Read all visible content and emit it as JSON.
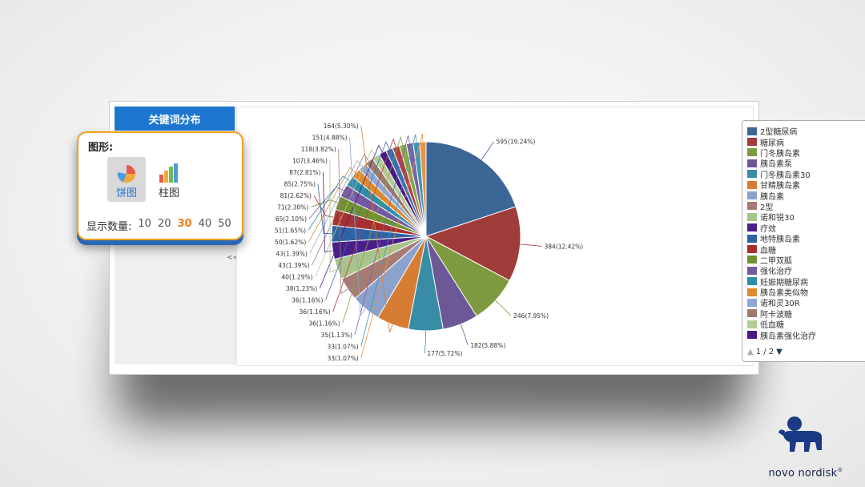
{
  "panel": {
    "title": "关键词分布",
    "collapse_glyph": "<<"
  },
  "options": {
    "shape_label": "图形:",
    "pie_label": "饼图",
    "bar_label": "柱图",
    "count_label": "显示数量:",
    "counts": [
      "10",
      "20",
      "30",
      "40",
      "50"
    ],
    "selected_count": "30"
  },
  "legend_pager": "1 / 2",
  "logo": {
    "text": "novo nordisk",
    "mark": "®"
  },
  "chart_data": {
    "type": "pie",
    "slices": [
      {
        "name": "2型糖尿病",
        "value": 595,
        "label": "595(19.24%)",
        "color": "#3c6696"
      },
      {
        "name": "糖尿病",
        "value": 384,
        "label": "384(12.42%)",
        "color": "#a03c3a"
      },
      {
        "name": "门冬胰岛素",
        "value": 246,
        "label": "246(7.95%)",
        "color": "#7e9a3e"
      },
      {
        "name": "胰岛素泵",
        "value": 182,
        "label": "182(5.88%)",
        "color": "#6c5896"
      },
      {
        "name": "门冬胰岛素30",
        "value": 177,
        "label": "177(5.72%)",
        "color": "#388ca6"
      },
      {
        "name": "甘精胰岛素",
        "value": 164,
        "label": "164(5.30%)",
        "color": "#d67d33"
      },
      {
        "name": "胰岛素",
        "value": 151,
        "label": "151(4.88%)",
        "color": "#8ba2cc"
      },
      {
        "name": "2型",
        "value": 118,
        "label": "118(3.82%)",
        "color": "#a77b73"
      },
      {
        "name": "诺和锐30",
        "value": 107,
        "label": "107(3.46%)",
        "color": "#a8c48c"
      },
      {
        "name": "疗效",
        "value": 87,
        "label": "87(2.81%)",
        "color": "#4a1f8c"
      },
      {
        "name": "地特胰岛素",
        "value": 85,
        "label": "85(2.75%)",
        "color": "#2f62a2"
      },
      {
        "name": "血糖",
        "value": 81,
        "label": "81(2.62%)",
        "color": "#a6302f"
      },
      {
        "name": "二甲双胍",
        "value": 71,
        "label": "71(2.30%)",
        "color": "#6f912f"
      },
      {
        "name": "强化治疗",
        "value": 65,
        "label": "65(2.10%)",
        "color": "#75589f"
      },
      {
        "name": "妊娠期糖尿病",
        "value": 51,
        "label": "51(1.65%)",
        "color": "#2d8ea8"
      },
      {
        "name": "胰岛素类似物",
        "value": 50,
        "label": "50(1.62%)",
        "color": "#e08a30"
      },
      {
        "name": "诺和灵30R",
        "value": 43,
        "label": "43(1.39%)",
        "color": "#8ea8d6"
      },
      {
        "name": "阿卡波糖",
        "value": 43,
        "label": "43(1.39%)",
        "color": "#9c7a6e"
      },
      {
        "name": "低血糖",
        "value": 40,
        "label": "40(1.29%)",
        "color": "#b3cc95"
      },
      {
        "name": "胰岛素强化治疗",
        "value": 38,
        "label": "38(1.23%)",
        "color": "#4a1a80"
      },
      {
        "name": "",
        "value": 36,
        "label": "36(1.16%)",
        "color": "#3a6fb0"
      },
      {
        "name": "",
        "value": 36,
        "label": "36(1.16%)",
        "color": "#b04040"
      },
      {
        "name": "",
        "value": 36,
        "label": "36(1.16%)",
        "color": "#86a848"
      },
      {
        "name": "",
        "value": 35,
        "label": "35(1.13%)",
        "color": "#7a62a8"
      },
      {
        "name": "",
        "value": 33,
        "label": "33(1.07%)",
        "color": "#3b98b4"
      },
      {
        "name": "",
        "value": 33,
        "label": "33(1.07%)",
        "color": "#e89446"
      }
    ]
  }
}
